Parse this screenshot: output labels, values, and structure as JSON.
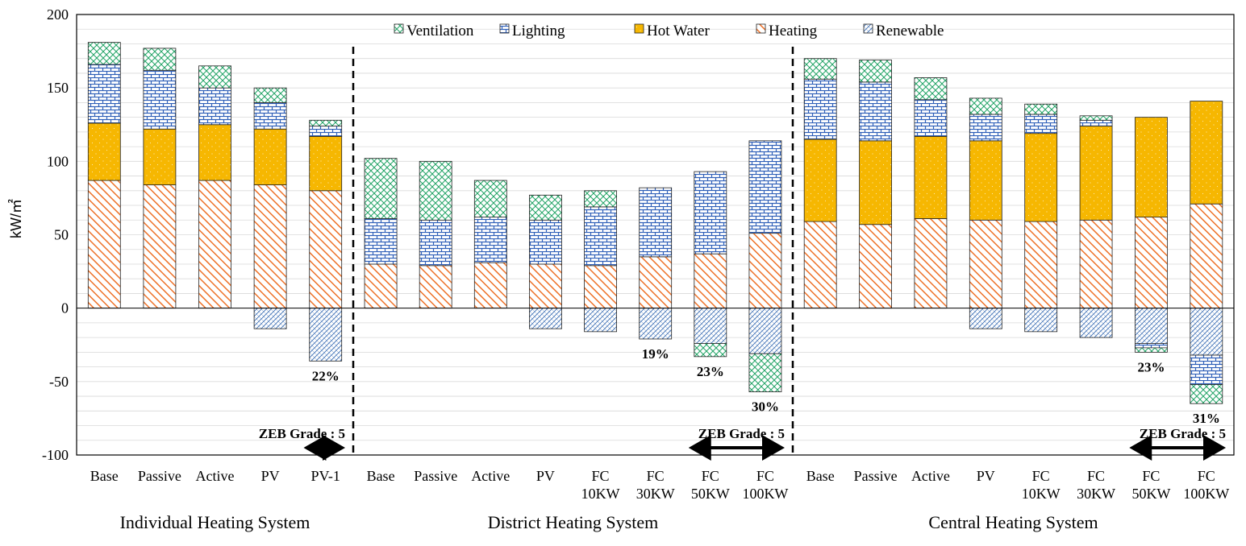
{
  "chart_data": {
    "type": "bar",
    "stacked": true,
    "ylabel": "kW/㎡",
    "ylim": [
      -100,
      200
    ],
    "yticks": [
      200,
      150,
      100,
      50,
      0,
      -50,
      -100
    ],
    "grid": true,
    "legend": [
      "Ventilation",
      "Lighting",
      "Hot Water",
      "Heating",
      "Renewable"
    ],
    "colors": {
      "ventilation": "#21a365",
      "lighting": "#2e5fb8",
      "hot_water": "#f6b701",
      "heating": "#ed7128",
      "renewable": "#3c6fb5"
    },
    "groups": [
      {
        "name": "Individual Heating System",
        "bars": [
          {
            "label": [
              "Base"
            ],
            "heating": 87,
            "hot_water": 39,
            "lighting": 40,
            "ventilation": 15,
            "neg": []
          },
          {
            "label": [
              "Passive"
            ],
            "heating": 84,
            "hot_water": 38,
            "lighting": 40,
            "ventilation": 15,
            "neg": []
          },
          {
            "label": [
              "Active"
            ],
            "heating": 87,
            "hot_water": 38,
            "lighting": 25,
            "ventilation": 15,
            "neg": []
          },
          {
            "label": [
              "PV"
            ],
            "heating": 84,
            "hot_water": 38,
            "lighting": 18,
            "ventilation": 10,
            "neg": [
              {
                "type": "renewable",
                "value": 14
              }
            ]
          },
          {
            "label": [
              "PV-1"
            ],
            "heating": 80,
            "hot_water": 37,
            "lighting": 7,
            "ventilation": 4,
            "neg": [
              {
                "type": "renewable",
                "value": 36
              }
            ],
            "pct": "22%"
          }
        ],
        "zeb": "ZEB Grade : 5"
      },
      {
        "name": "District Heating System",
        "bars": [
          {
            "label": [
              "Base"
            ],
            "heating": 30,
            "hot_water": 0,
            "lighting": 31,
            "ventilation": 41,
            "neg": []
          },
          {
            "label": [
              "Passive"
            ],
            "heating": 29,
            "hot_water": 0,
            "lighting": 31,
            "ventilation": 40,
            "neg": []
          },
          {
            "label": [
              "Active"
            ],
            "heating": 31,
            "hot_water": 0,
            "lighting": 31,
            "ventilation": 25,
            "neg": []
          },
          {
            "label": [
              "PV"
            ],
            "heating": 30,
            "hot_water": 0,
            "lighting": 30,
            "ventilation": 17,
            "neg": [
              {
                "type": "renewable",
                "value": 14
              }
            ]
          },
          {
            "label": [
              "FC",
              "10KW"
            ],
            "heating": 29,
            "hot_water": 0,
            "lighting": 40,
            "ventilation": 11,
            "neg": [
              {
                "type": "renewable",
                "value": 16
              }
            ]
          },
          {
            "label": [
              "FC",
              "30KW"
            ],
            "heating": 35,
            "hot_water": 0,
            "lighting": 47,
            "ventilation": 0,
            "neg": [
              {
                "type": "renewable",
                "value": 21
              }
            ],
            "pct": "19%"
          },
          {
            "label": [
              "FC",
              "50KW"
            ],
            "heating": 37,
            "hot_water": 0,
            "lighting": 56,
            "ventilation": 0,
            "neg": [
              {
                "type": "renewable",
                "value": 24
              },
              {
                "type": "ventilation",
                "value": 9
              }
            ],
            "pct": "23%"
          },
          {
            "label": [
              "FC",
              "100KW"
            ],
            "heating": 51,
            "hot_water": 0,
            "lighting": 63,
            "ventilation": 0,
            "neg": [
              {
                "type": "renewable",
                "value": 31
              },
              {
                "type": "ventilation",
                "value": 26
              }
            ],
            "pct": "30%"
          }
        ],
        "zeb": "ZEB Grade : 5"
      },
      {
        "name": "Central Heating System",
        "bars": [
          {
            "label": [
              "Base"
            ],
            "heating": 59,
            "hot_water": 56,
            "lighting": 41,
            "ventilation": 14,
            "neg": []
          },
          {
            "label": [
              "Passive"
            ],
            "heating": 57,
            "hot_water": 57,
            "lighting": 40,
            "ventilation": 15,
            "neg": []
          },
          {
            "label": [
              "Active"
            ],
            "heating": 61,
            "hot_water": 56,
            "lighting": 25,
            "ventilation": 15,
            "neg": []
          },
          {
            "label": [
              "PV"
            ],
            "heating": 60,
            "hot_water": 54,
            "lighting": 18,
            "ventilation": 11,
            "neg": [
              {
                "type": "renewable",
                "value": 14
              }
            ]
          },
          {
            "label": [
              "FC",
              "10KW"
            ],
            "heating": 59,
            "hot_water": 60,
            "lighting": 13,
            "ventilation": 7,
            "neg": [
              {
                "type": "renewable",
                "value": 16
              }
            ]
          },
          {
            "label": [
              "FC",
              "30KW"
            ],
            "heating": 60,
            "hot_water": 64,
            "lighting": 4,
            "ventilation": 3,
            "neg": [
              {
                "type": "renewable",
                "value": 20
              }
            ]
          },
          {
            "label": [
              "FC",
              "50KW"
            ],
            "heating": 62,
            "hot_water": 68,
            "lighting": 0,
            "ventilation": 0,
            "neg": [
              {
                "type": "renewable",
                "value": 24
              },
              {
                "type": "lighting",
                "value": 3
              },
              {
                "type": "ventilation",
                "value": 3
              }
            ],
            "pct": "23%"
          },
          {
            "label": [
              "FC",
              "100KW"
            ],
            "heating": 71,
            "hot_water": 70,
            "lighting": 0,
            "ventilation": 0,
            "neg": [
              {
                "type": "renewable",
                "value": 32
              },
              {
                "type": "lighting",
                "value": 20
              },
              {
                "type": "ventilation",
                "value": 13
              }
            ],
            "pct": "31%"
          }
        ],
        "zeb": "ZEB Grade : 5"
      }
    ]
  }
}
